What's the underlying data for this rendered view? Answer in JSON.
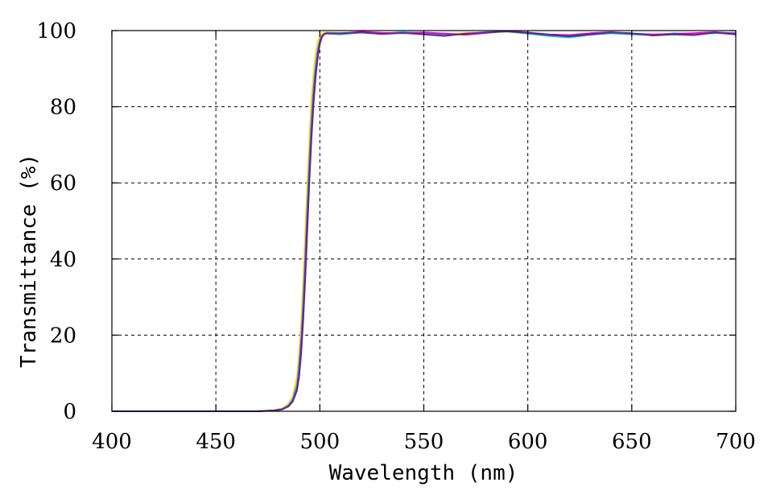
{
  "chart_data": {
    "type": "line",
    "title": "",
    "xlabel": "Wavelength (nm)",
    "ylabel": "Transmittance (%)",
    "xlim": [
      400,
      700
    ],
    "ylim": [
      0,
      100
    ],
    "xticks": [
      400,
      450,
      500,
      550,
      600,
      650,
      700
    ],
    "yticks": [
      0,
      20,
      40,
      60,
      80,
      100
    ],
    "xtick_labels": [
      "400",
      "450",
      "500",
      "550",
      "600",
      "650",
      "700"
    ],
    "ytick_labels": [
      "0",
      "20",
      "40",
      "60",
      "80",
      "100"
    ],
    "grid": true,
    "legend": "none",
    "series": [
      {
        "color": "#ffdd00",
        "x": [
          400,
          470,
          478,
          482,
          485,
          487,
          489,
          490,
          491,
          492,
          493,
          494,
          495,
          496,
          497,
          498,
          499,
          500,
          501,
          502,
          503,
          510,
          520,
          530,
          540,
          550,
          560,
          570,
          580,
          590,
          600,
          610,
          620,
          630,
          640,
          650,
          660,
          670,
          680,
          690,
          700
        ],
        "y": [
          0,
          0,
          0.3,
          0.8,
          2,
          4,
          9,
          15,
          23,
          34,
          47,
          60,
          72,
          82,
          89,
          94,
          97,
          98.6,
          99.2,
          99.4,
          99.5,
          99.4,
          99.6,
          99.3,
          99.5,
          99.2,
          99.0,
          99.4,
          99.5,
          99.7,
          99.3,
          98.8,
          98.6,
          99.2,
          99.4,
          99.1,
          98.9,
          99.2,
          99.0,
          99.4,
          99.3
        ]
      },
      {
        "color": "#00c8e6",
        "x": [
          400,
          470,
          478,
          482,
          485,
          487,
          489,
          490,
          491,
          492,
          493,
          494,
          495,
          496,
          497,
          498,
          499,
          500,
          501,
          502,
          503,
          510,
          520,
          530,
          540,
          550,
          560,
          570,
          580,
          590,
          600,
          610,
          620,
          630,
          640,
          650,
          660,
          670,
          680,
          690,
          700
        ],
        "y": [
          0,
          0,
          0.2,
          0.6,
          1.6,
          3.2,
          7,
          12,
          19,
          29,
          41,
          54,
          66,
          77,
          85,
          91,
          95,
          97.5,
          98.6,
          99.0,
          99.2,
          99.0,
          99.5,
          99.2,
          99.6,
          99.3,
          98.8,
          99.1,
          99.6,
          99.8,
          99.2,
          98.6,
          98.2,
          98.9,
          99.3,
          99.0,
          98.8,
          99.3,
          99.1,
          99.3,
          99.4
        ]
      },
      {
        "color": "#e000c8",
        "x": [
          400,
          470,
          478,
          482,
          485,
          487,
          489,
          490,
          491,
          492,
          493,
          494,
          495,
          496,
          497,
          498,
          499,
          500,
          501,
          502,
          503,
          510,
          520,
          530,
          540,
          550,
          560,
          570,
          580,
          590,
          600,
          610,
          620,
          630,
          640,
          650,
          660,
          670,
          680,
          690,
          700
        ],
        "y": [
          0,
          0,
          0.2,
          0.5,
          1.4,
          2.8,
          6,
          10,
          17,
          26,
          38,
          51,
          63,
          74,
          83,
          89,
          94,
          97,
          98.5,
          99.1,
          99.3,
          99.2,
          99.7,
          99.4,
          99.3,
          99.5,
          99.2,
          98.9,
          99.4,
          99.9,
          99.5,
          99.0,
          98.8,
          99.3,
          99.6,
          99.2,
          99.0,
          99.1,
          99.3,
          99.6,
          99.2
        ]
      },
      {
        "color": "#5a2a8a",
        "x": [
          400,
          470,
          478,
          482,
          485,
          487,
          489,
          490,
          491,
          492,
          493,
          494,
          495,
          496,
          497,
          498,
          499,
          500,
          501,
          502,
          503,
          510,
          520,
          530,
          540,
          550,
          560,
          570,
          580,
          590,
          600,
          610,
          620,
          630,
          640,
          650,
          660,
          670,
          680,
          690,
          700
        ],
        "y": [
          0,
          0,
          0.2,
          0.5,
          1.3,
          2.6,
          5.5,
          9,
          15,
          24,
          35,
          48,
          61,
          72,
          81,
          88,
          93,
          96.5,
          98.3,
          99.0,
          99.3,
          99.3,
          99.5,
          99.1,
          99.4,
          99.0,
          98.6,
          99.2,
          99.5,
          99.8,
          99.4,
          98.9,
          98.5,
          99.0,
          99.5,
          99.3,
          98.7,
          99.0,
          98.8,
          99.5,
          99.0
        ]
      }
    ]
  }
}
